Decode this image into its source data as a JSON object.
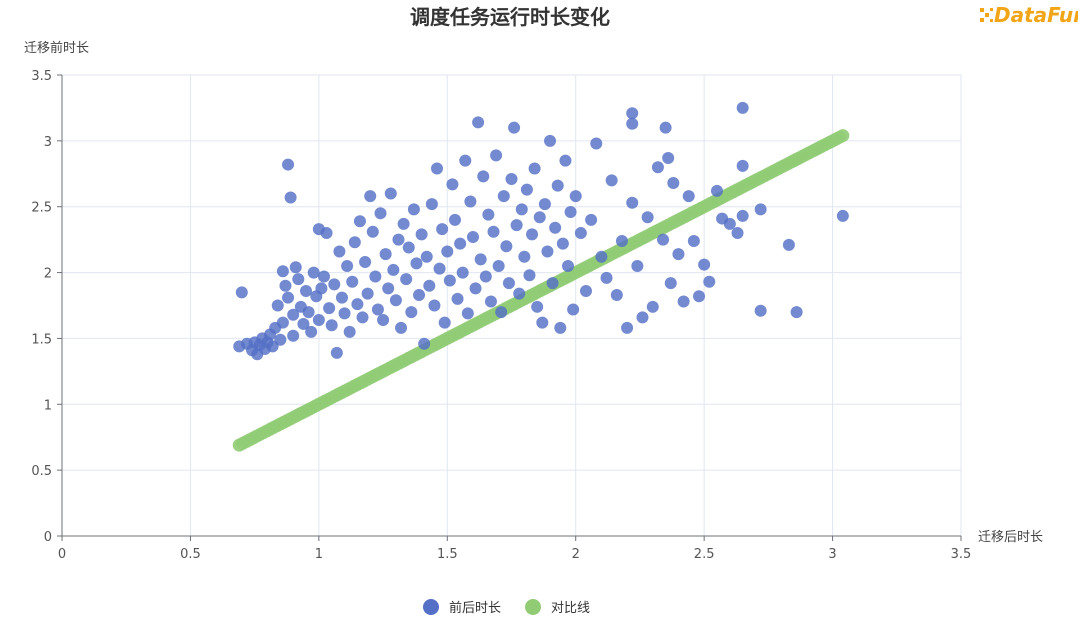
{
  "brand": {
    "logo_text": "DataFun."
  },
  "colors": {
    "scatter": "#5470c6",
    "reference": "#91cc75"
  },
  "chart_data": {
    "type": "scatter",
    "title": "调度任务运行时长变化",
    "xlabel": "迁移后时长",
    "ylabel": "迁移前时长",
    "xlim": [
      0,
      3.5
    ],
    "ylim": [
      0,
      3.5
    ],
    "x_ticks": [
      "0",
      "0.5",
      "1",
      "1.5",
      "2",
      "2.5",
      "3",
      "3.5"
    ],
    "y_ticks": [
      "0",
      "0.5",
      "1",
      "1.5",
      "2",
      "2.5",
      "3",
      "3.5"
    ],
    "grid": true,
    "legend_position": "bottom-center",
    "series": [
      {
        "name": "前后时长",
        "color": "#5470c6",
        "points": [
          [
            0.69,
            1.44
          ],
          [
            0.7,
            1.85
          ],
          [
            0.72,
            1.46
          ],
          [
            0.74,
            1.41
          ],
          [
            0.75,
            1.47
          ],
          [
            0.76,
            1.38
          ],
          [
            0.77,
            1.45
          ],
          [
            0.78,
            1.5
          ],
          [
            0.79,
            1.42
          ],
          [
            0.8,
            1.47
          ],
          [
            0.81,
            1.53
          ],
          [
            0.82,
            1.44
          ],
          [
            0.83,
            1.58
          ],
          [
            0.84,
            1.75
          ],
          [
            0.85,
            1.49
          ],
          [
            0.86,
            2.01
          ],
          [
            0.86,
            1.62
          ],
          [
            0.87,
            1.9
          ],
          [
            0.88,
            2.82
          ],
          [
            0.88,
            1.81
          ],
          [
            0.89,
            2.57
          ],
          [
            0.9,
            1.68
          ],
          [
            0.9,
            1.52
          ],
          [
            0.91,
            2.04
          ],
          [
            0.92,
            1.95
          ],
          [
            0.93,
            1.74
          ],
          [
            0.94,
            1.61
          ],
          [
            0.95,
            1.86
          ],
          [
            0.96,
            1.7
          ],
          [
            0.97,
            1.55
          ],
          [
            0.98,
            2.0
          ],
          [
            0.99,
            1.82
          ],
          [
            1.0,
            2.33
          ],
          [
            1.0,
            1.64
          ],
          [
            1.01,
            1.88
          ],
          [
            1.02,
            1.97
          ],
          [
            1.03,
            2.3
          ],
          [
            1.04,
            1.73
          ],
          [
            1.05,
            1.6
          ],
          [
            1.06,
            1.91
          ],
          [
            1.07,
            1.39
          ],
          [
            1.08,
            2.16
          ],
          [
            1.09,
            1.81
          ],
          [
            1.1,
            1.69
          ],
          [
            1.11,
            2.05
          ],
          [
            1.12,
            1.55
          ],
          [
            1.13,
            1.93
          ],
          [
            1.14,
            2.23
          ],
          [
            1.15,
            1.76
          ],
          [
            1.16,
            2.39
          ],
          [
            1.17,
            1.66
          ],
          [
            1.18,
            2.08
          ],
          [
            1.19,
            1.84
          ],
          [
            1.2,
            2.58
          ],
          [
            1.21,
            2.31
          ],
          [
            1.22,
            1.97
          ],
          [
            1.23,
            1.72
          ],
          [
            1.24,
            2.45
          ],
          [
            1.25,
            1.64
          ],
          [
            1.26,
            2.14
          ],
          [
            1.27,
            1.88
          ],
          [
            1.28,
            2.6
          ],
          [
            1.29,
            2.02
          ],
          [
            1.3,
            1.79
          ],
          [
            1.31,
            2.25
          ],
          [
            1.32,
            1.58
          ],
          [
            1.33,
            2.37
          ],
          [
            1.34,
            1.95
          ],
          [
            1.35,
            2.19
          ],
          [
            1.36,
            1.7
          ],
          [
            1.37,
            2.48
          ],
          [
            1.38,
            2.07
          ],
          [
            1.39,
            1.83
          ],
          [
            1.4,
            2.29
          ],
          [
            1.41,
            1.46
          ],
          [
            1.42,
            2.12
          ],
          [
            1.43,
            1.9
          ],
          [
            1.44,
            2.52
          ],
          [
            1.45,
            1.75
          ],
          [
            1.46,
            2.79
          ],
          [
            1.47,
            2.03
          ],
          [
            1.48,
            2.33
          ],
          [
            1.49,
            1.62
          ],
          [
            1.5,
            2.16
          ],
          [
            1.51,
            1.94
          ],
          [
            1.52,
            2.67
          ],
          [
            1.53,
            2.4
          ],
          [
            1.54,
            1.8
          ],
          [
            1.55,
            2.22
          ],
          [
            1.56,
            2.0
          ],
          [
            1.57,
            2.85
          ],
          [
            1.58,
            1.69
          ],
          [
            1.59,
            2.54
          ],
          [
            1.6,
            2.27
          ],
          [
            1.61,
            1.88
          ],
          [
            1.62,
            3.14
          ],
          [
            1.63,
            2.1
          ],
          [
            1.64,
            2.73
          ],
          [
            1.65,
            1.97
          ],
          [
            1.66,
            2.44
          ],
          [
            1.67,
            1.78
          ],
          [
            1.68,
            2.31
          ],
          [
            1.69,
            2.89
          ],
          [
            1.7,
            2.05
          ],
          [
            1.71,
            1.7
          ],
          [
            1.72,
            2.58
          ],
          [
            1.73,
            2.2
          ],
          [
            1.74,
            1.92
          ],
          [
            1.75,
            2.71
          ],
          [
            1.76,
            3.1
          ],
          [
            1.77,
            2.36
          ],
          [
            1.78,
            1.84
          ],
          [
            1.79,
            2.48
          ],
          [
            1.8,
            2.12
          ],
          [
            1.81,
            2.63
          ],
          [
            1.82,
            1.98
          ],
          [
            1.83,
            2.29
          ],
          [
            1.84,
            2.79
          ],
          [
            1.85,
            1.74
          ],
          [
            1.86,
            2.42
          ],
          [
            1.87,
            1.62
          ],
          [
            1.88,
            2.52
          ],
          [
            1.89,
            2.16
          ],
          [
            1.9,
            3.0
          ],
          [
            1.91,
            1.92
          ],
          [
            1.92,
            2.34
          ],
          [
            1.93,
            2.66
          ],
          [
            1.94,
            1.58
          ],
          [
            1.95,
            2.22
          ],
          [
            1.96,
            2.85
          ],
          [
            1.97,
            2.05
          ],
          [
            1.98,
            2.46
          ],
          [
            1.99,
            1.72
          ],
          [
            2.0,
            2.58
          ],
          [
            2.02,
            2.3
          ],
          [
            2.04,
            1.86
          ],
          [
            2.06,
            2.4
          ],
          [
            2.08,
            2.98
          ],
          [
            2.1,
            2.12
          ],
          [
            2.12,
            1.96
          ],
          [
            2.14,
            2.7
          ],
          [
            2.16,
            1.83
          ],
          [
            2.18,
            2.24
          ],
          [
            2.2,
            1.58
          ],
          [
            2.22,
            2.53
          ],
          [
            2.22,
            3.21
          ],
          [
            2.22,
            3.13
          ],
          [
            2.24,
            2.05
          ],
          [
            2.26,
            1.66
          ],
          [
            2.28,
            2.42
          ],
          [
            2.3,
            1.74
          ],
          [
            2.32,
            2.8
          ],
          [
            2.34,
            2.25
          ],
          [
            2.35,
            3.1
          ],
          [
            2.36,
            2.87
          ],
          [
            2.37,
            1.92
          ],
          [
            2.38,
            2.68
          ],
          [
            2.4,
            2.14
          ],
          [
            2.42,
            1.78
          ],
          [
            2.44,
            2.58
          ],
          [
            2.46,
            2.24
          ],
          [
            2.48,
            1.82
          ],
          [
            2.5,
            2.06
          ],
          [
            2.52,
            1.93
          ],
          [
            2.55,
            2.62
          ],
          [
            2.57,
            2.41
          ],
          [
            2.6,
            2.37
          ],
          [
            2.63,
            2.3
          ],
          [
            2.65,
            2.81
          ],
          [
            2.65,
            2.43
          ],
          [
            2.65,
            3.25
          ],
          [
            2.72,
            2.48
          ],
          [
            2.72,
            1.71
          ],
          [
            2.83,
            2.21
          ],
          [
            2.86,
            1.7
          ],
          [
            3.04,
            2.43
          ]
        ]
      },
      {
        "name": "对比线",
        "color": "#91cc75",
        "points": [
          [
            0.69,
            0.69
          ],
          [
            0.73,
            0.73
          ],
          [
            0.77,
            0.77
          ],
          [
            0.81,
            0.81
          ],
          [
            0.85,
            0.85
          ],
          [
            0.9,
            0.9
          ],
          [
            0.95,
            0.95
          ],
          [
            1.0,
            1.0
          ],
          [
            1.05,
            1.05
          ],
          [
            1.1,
            1.1
          ],
          [
            1.15,
            1.15
          ],
          [
            1.2,
            1.2
          ],
          [
            1.25,
            1.25
          ],
          [
            1.3,
            1.3
          ],
          [
            1.35,
            1.35
          ],
          [
            1.4,
            1.4
          ],
          [
            1.45,
            1.45
          ],
          [
            1.5,
            1.5
          ],
          [
            1.55,
            1.55
          ],
          [
            1.6,
            1.6
          ],
          [
            1.65,
            1.65
          ],
          [
            1.7,
            1.7
          ],
          [
            1.75,
            1.75
          ],
          [
            1.8,
            1.8
          ],
          [
            1.85,
            1.85
          ],
          [
            1.9,
            1.9
          ],
          [
            1.95,
            1.95
          ],
          [
            2.0,
            2.0
          ],
          [
            2.05,
            2.05
          ],
          [
            2.1,
            2.1
          ],
          [
            2.15,
            2.15
          ],
          [
            2.2,
            2.2
          ],
          [
            2.25,
            2.25
          ],
          [
            2.3,
            2.3
          ],
          [
            2.35,
            2.35
          ],
          [
            2.4,
            2.4
          ],
          [
            2.45,
            2.45
          ],
          [
            2.5,
            2.5
          ],
          [
            2.55,
            2.55
          ],
          [
            2.6,
            2.6
          ],
          [
            2.65,
            2.65
          ],
          [
            2.72,
            2.72
          ],
          [
            2.84,
            2.84
          ],
          [
            2.87,
            2.87
          ],
          [
            3.04,
            3.04
          ]
        ]
      }
    ]
  }
}
